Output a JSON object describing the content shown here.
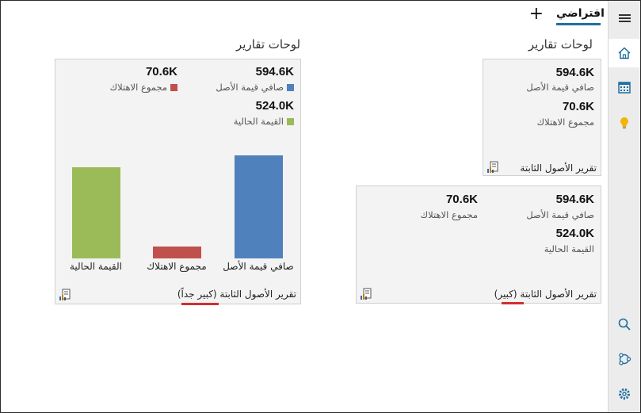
{
  "topbar": {
    "tab_label": "افتراضي",
    "add_label": "+"
  },
  "rail": {
    "items": [
      "menu-icon",
      "home-icon",
      "calendar-icon",
      "lightbulb-icon",
      "search-icon",
      "connections-icon",
      "settings-icon"
    ]
  },
  "right_section": {
    "title": "لوحات تقارير",
    "small_tile": {
      "kpis": [
        {
          "value": "594.6K",
          "label": "صافي قيمة الأصل"
        },
        {
          "value": "70.6K",
          "label": "مجموع الاهتلاك"
        }
      ],
      "title": "تقرير الأصول الثابتة"
    },
    "medium_tile": {
      "kpis": [
        {
          "value": "594.6K",
          "label": "صافي قيمة الأصل"
        },
        {
          "value": "70.6K",
          "label": "مجموع الاهتلاك"
        },
        {
          "value": "524.0K",
          "label": "القيمة الحالية"
        }
      ],
      "title": "تقرير الأصول الثابتة (كبير)"
    }
  },
  "left_section": {
    "title": "لوحات تقارير",
    "large_tile": {
      "kpis": [
        {
          "value": "594.6K",
          "label": "صافي قيمة الأصل",
          "color": "#4f81bd"
        },
        {
          "value": "70.6K",
          "label": "مجموع الاهتلاك",
          "color": "#c0504d"
        },
        {
          "value": "524.0K",
          "label": "القيمة الحالية",
          "color": "#9bbb59"
        }
      ],
      "title": "تقرير الأصول الثابتة (كبير جداً)"
    }
  },
  "chart_data": {
    "type": "bar",
    "categories": [
      "صافي قيمة الأصل",
      "مجموع الاهتلاك",
      "القيمة الحالية"
    ],
    "values": [
      594.6,
      70.6,
      524.0
    ],
    "colors": [
      "#4f81bd",
      "#c0504d",
      "#9bbb59"
    ],
    "ylim": [
      0,
      620
    ],
    "grid": false
  },
  "colors": {
    "accent": "#1f6f9f",
    "highlight_underline": "#d32f2f",
    "tile_bg": "#f3f3f3",
    "rail_bg": "#ececec"
  }
}
